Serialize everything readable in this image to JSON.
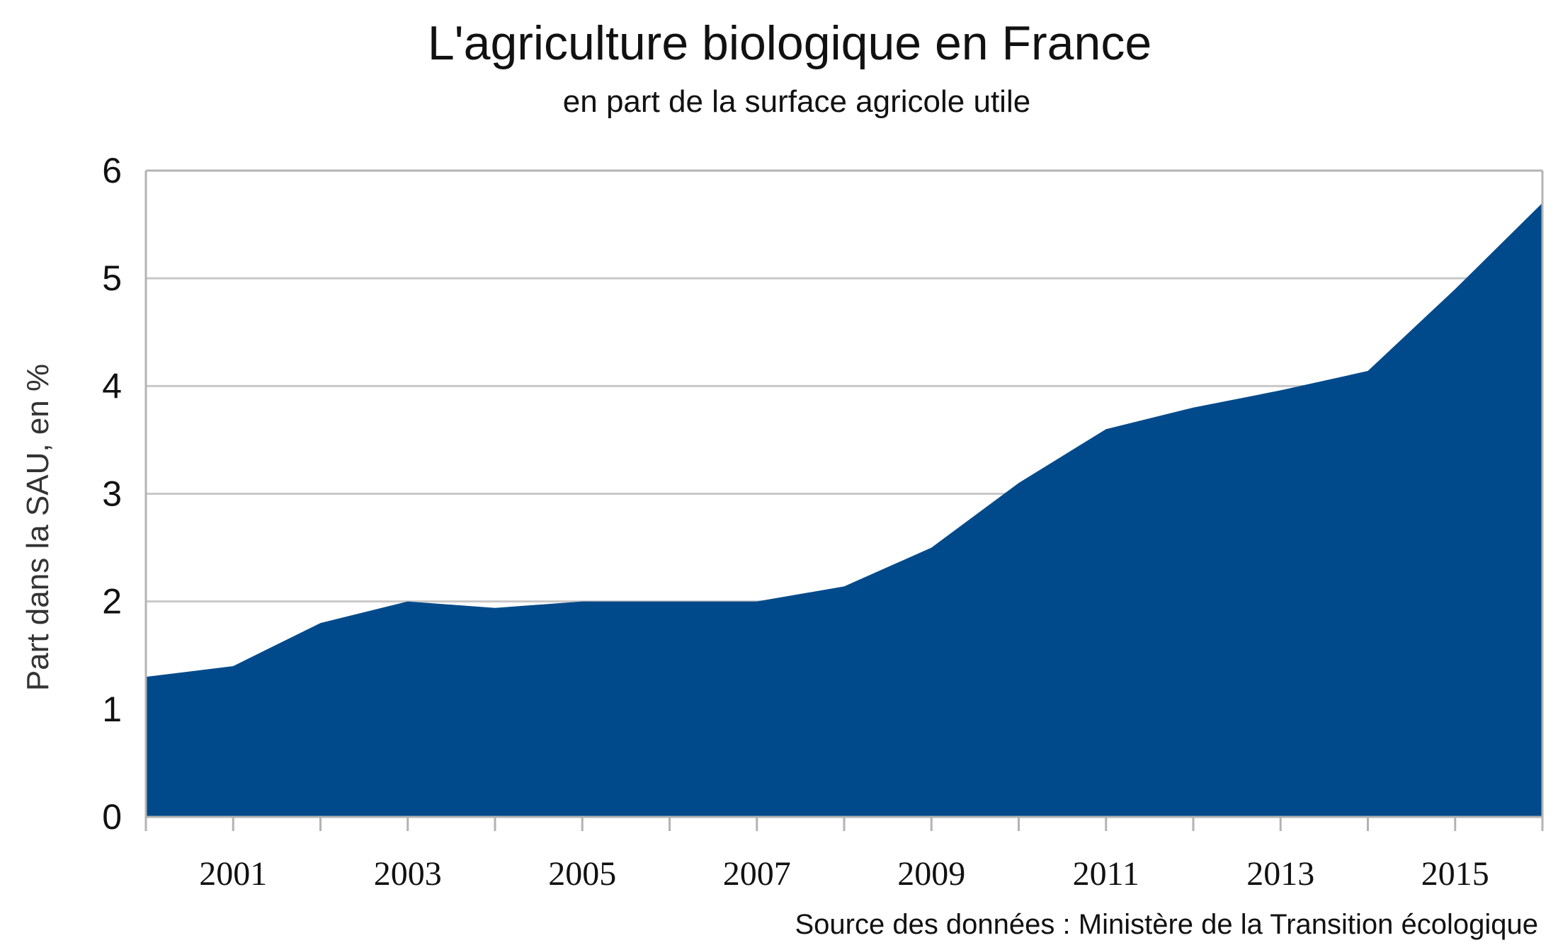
{
  "chart_data": {
    "type": "area",
    "title": "L'agriculture biologique en France",
    "subtitle": "en part de la surface agricole utile",
    "xlabel": "",
    "ylabel": "Part dans la SAU, en %",
    "source": "Source des données : Ministère de la Transition écologique",
    "x": [
      2000,
      2001,
      2002,
      2003,
      2004,
      2005,
      2006,
      2007,
      2008,
      2009,
      2010,
      2011,
      2012,
      2013,
      2014,
      2015,
      2016
    ],
    "series": [
      {
        "name": "Part dans la SAU",
        "values": [
          1.3,
          1.4,
          1.8,
          2.0,
          1.94,
          2.0,
          2.0,
          2.0,
          2.14,
          2.5,
          3.1,
          3.6,
          3.8,
          3.96,
          4.14,
          4.9,
          5.7
        ],
        "color": "#004a8b"
      }
    ],
    "xlim": [
      2000,
      2016
    ],
    "ylim": [
      0,
      6
    ],
    "yticks": [
      "0",
      "1",
      "2",
      "3",
      "4",
      "5",
      "6"
    ],
    "xticklabels": [
      "2001",
      "2003",
      "2005",
      "2007",
      "2009",
      "2011",
      "2013",
      "2015"
    ],
    "grid": true,
    "legend": "none"
  }
}
